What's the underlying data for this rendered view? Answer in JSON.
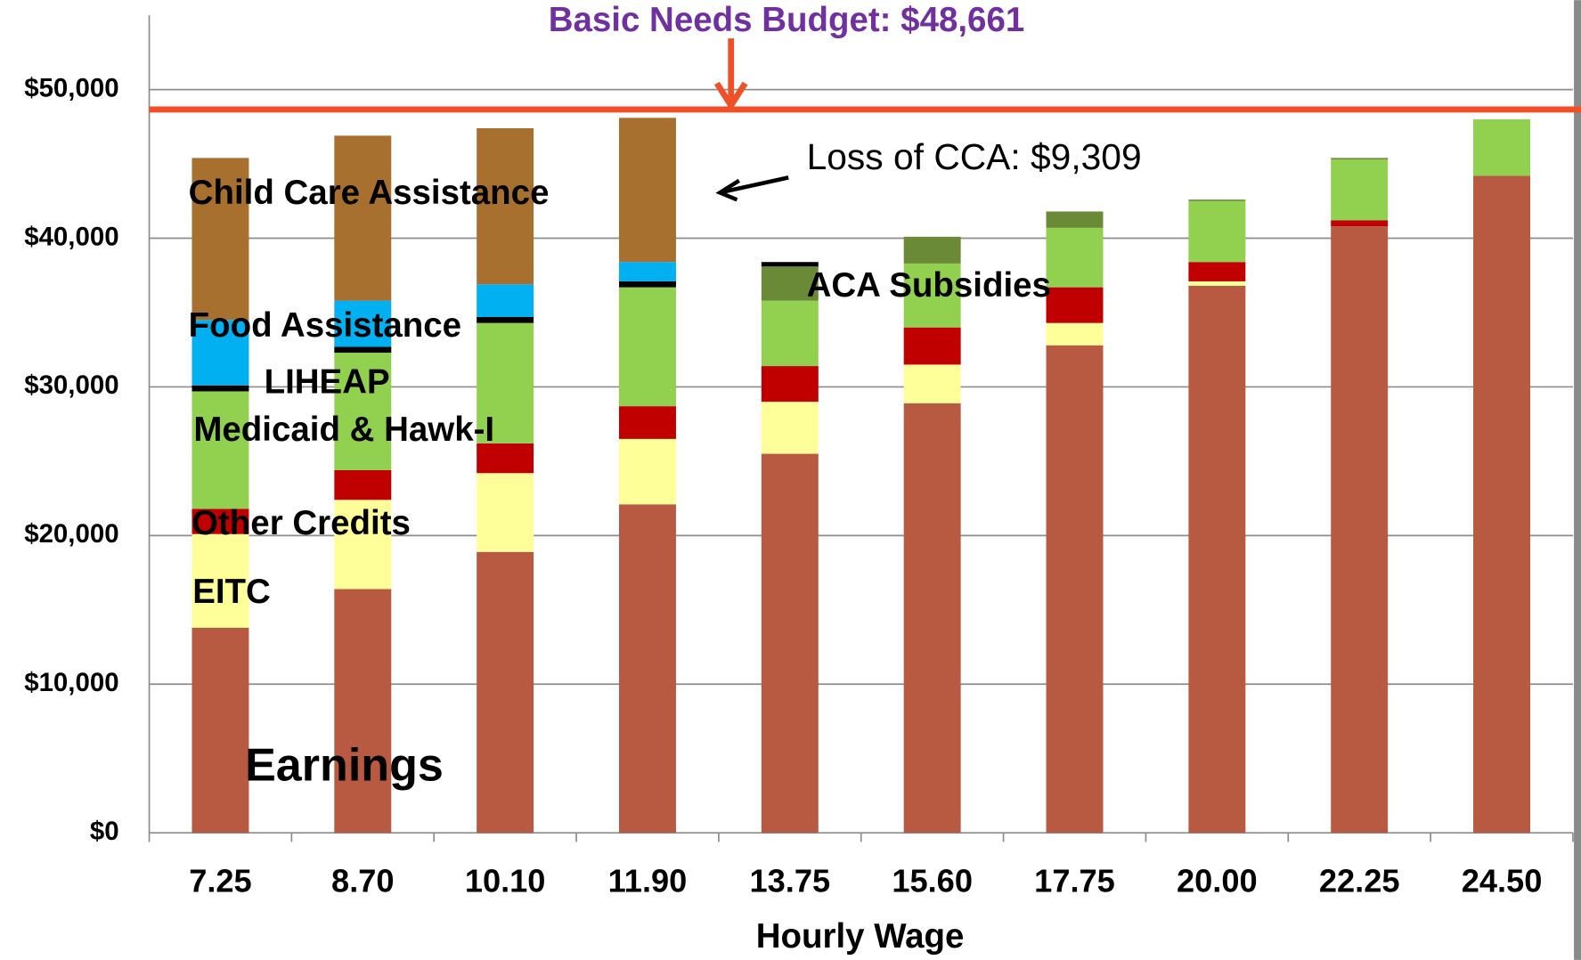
{
  "chart_data": {
    "type": "stacked_bar",
    "title": "Basic Needs Budget: $48,661",
    "budget_line": 48661,
    "annotation": "Loss of CCA: $9,309",
    "x_label": "Hourly Wage",
    "categories": [
      "7.25",
      "8.70",
      "10.10",
      "11.90",
      "13.75",
      "15.60",
      "17.75",
      "20.00",
      "22.25",
      "24.50"
    ],
    "series": [
      {
        "name": "Earnings",
        "color": "#b85a42",
        "values": [
          13800,
          16400,
          18900,
          22100,
          25500,
          28900,
          32800,
          36800,
          40800,
          44200
        ]
      },
      {
        "name": "EITC",
        "color": "#ffff99",
        "values": [
          6300,
          6000,
          5300,
          4400,
          3500,
          2600,
          1500,
          300,
          0,
          0
        ]
      },
      {
        "name": "Other Credits",
        "color": "#c00000",
        "values": [
          1700,
          2000,
          2000,
          2200,
          2400,
          2500,
          2400,
          1300,
          400,
          0
        ]
      },
      {
        "name": "Medicaid & Hawk-I",
        "color": "#92d050",
        "values": [
          7900,
          7900,
          8100,
          8000,
          4400,
          4300,
          4000,
          4100,
          4100,
          3800
        ]
      },
      {
        "name": "ACA Subsidies",
        "color": "#6b8a38",
        "values": [
          0,
          0,
          0,
          0,
          2300,
          1800,
          1100,
          100,
          100,
          0
        ]
      },
      {
        "name": "LIHEAP",
        "color": "#000000",
        "values": [
          400,
          400,
          400,
          400,
          300,
          0,
          0,
          0,
          0,
          0
        ]
      },
      {
        "name": "Food Assistance",
        "color": "#00b0f0",
        "values": [
          4400,
          3100,
          2200,
          1300,
          0,
          0,
          0,
          0,
          0,
          0
        ]
      },
      {
        "name": "Child Care Assistance",
        "color": "#a8702e",
        "values": [
          10900,
          11100,
          10500,
          9700,
          0,
          0,
          0,
          0,
          0,
          0
        ]
      }
    ],
    "ylim": [
      0,
      55000
    ],
    "yticks": [
      {
        "value": 0,
        "label": "$0"
      },
      {
        "value": 10000,
        "label": "$10,000"
      },
      {
        "value": 20000,
        "label": "$20,000"
      },
      {
        "value": 30000,
        "label": "$30,000"
      },
      {
        "value": 40000,
        "label": "$40,000"
      },
      {
        "value": 50000,
        "label": "$50,000"
      }
    ],
    "grid": true
  }
}
